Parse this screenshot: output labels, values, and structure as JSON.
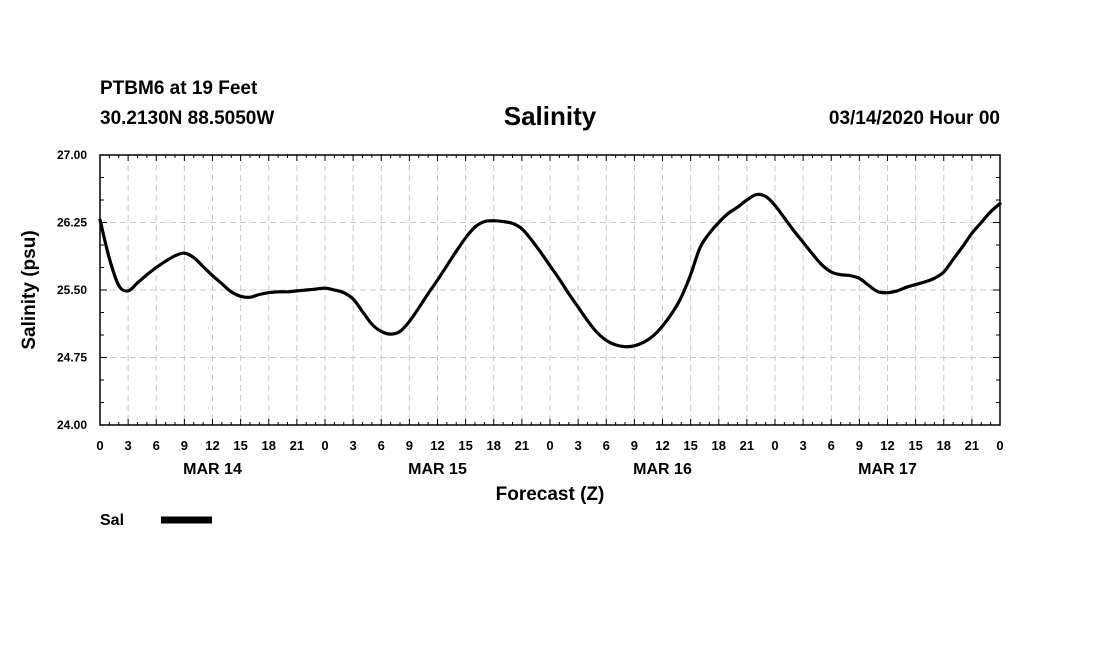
{
  "header": {
    "station": "PTBM6 at 19 Feet",
    "coords": "30.2130N 88.5050W",
    "title": "Salinity",
    "run": "03/14/2020 Hour 00"
  },
  "chart_data": {
    "type": "line",
    "title": "Salinity",
    "xlabel": "Forecast (Z)",
    "ylabel": "Salinity (psu)",
    "ylim": [
      24.0,
      27.0
    ],
    "yticks": [
      "24.00",
      "24.75",
      "25.50",
      "26.25",
      "27.00"
    ],
    "xlim": [
      0,
      96
    ],
    "x_tick_step_hours": 3,
    "x_tick_labels": [
      "0",
      "3",
      "6",
      "9",
      "12",
      "15",
      "18",
      "21",
      "0",
      "3",
      "6",
      "9",
      "12",
      "15",
      "18",
      "21",
      "0",
      "3",
      "6",
      "9",
      "12",
      "15",
      "18",
      "21",
      "0",
      "3",
      "6",
      "9",
      "12",
      "15",
      "18",
      "21",
      "0"
    ],
    "days": [
      {
        "label": "MAR 14",
        "center_hour": 12
      },
      {
        "label": "MAR 15",
        "center_hour": 36
      },
      {
        "label": "MAR 16",
        "center_hour": 60
      },
      {
        "label": "MAR 17",
        "center_hour": 84
      }
    ],
    "grid": true,
    "legend": {
      "position": "bottom-left"
    },
    "series": [
      {
        "name": "Sal",
        "x": [
          0,
          1,
          2,
          3,
          4,
          5,
          6,
          7,
          8,
          9,
          10,
          11,
          12,
          13,
          14,
          15,
          16,
          17,
          18,
          19,
          20,
          21,
          22,
          23,
          24,
          25,
          26,
          27,
          28,
          29,
          30,
          31,
          32,
          33,
          34,
          35,
          36,
          37,
          38,
          39,
          40,
          41,
          42,
          43,
          44,
          45,
          46,
          47,
          48,
          49,
          50,
          51,
          52,
          53,
          54,
          55,
          56,
          57,
          58,
          59,
          60,
          61,
          62,
          63,
          64,
          65,
          66,
          67,
          68,
          69,
          70,
          71,
          72,
          73,
          74,
          75,
          76,
          77,
          78,
          79,
          80,
          81,
          82,
          83,
          84,
          85,
          86,
          87,
          88,
          89,
          90,
          91,
          92,
          93,
          94,
          95,
          96
        ],
        "values": [
          26.28,
          25.85,
          25.55,
          25.49,
          25.58,
          25.67,
          25.75,
          25.82,
          25.88,
          25.91,
          25.86,
          25.76,
          25.66,
          25.57,
          25.48,
          25.43,
          25.42,
          25.45,
          25.47,
          25.48,
          25.48,
          25.49,
          25.5,
          25.51,
          25.52,
          25.5,
          25.47,
          25.4,
          25.26,
          25.12,
          25.04,
          25.01,
          25.04,
          25.15,
          25.3,
          25.46,
          25.61,
          25.77,
          25.93,
          26.08,
          26.2,
          26.26,
          26.27,
          26.26,
          26.24,
          26.18,
          26.06,
          25.92,
          25.77,
          25.62,
          25.46,
          25.31,
          25.16,
          25.03,
          24.94,
          24.89,
          24.87,
          24.88,
          24.92,
          24.99,
          25.1,
          25.24,
          25.42,
          25.67,
          25.97,
          26.13,
          26.25,
          26.35,
          26.42,
          26.5,
          26.56,
          26.54,
          26.44,
          26.3,
          26.16,
          26.03,
          25.9,
          25.78,
          25.7,
          25.67,
          25.66,
          25.63,
          25.55,
          25.48,
          25.47,
          25.49,
          25.53,
          25.56,
          25.59,
          25.63,
          25.7,
          25.84,
          25.98,
          26.13,
          26.25,
          26.37,
          26.46
        ]
      }
    ]
  }
}
